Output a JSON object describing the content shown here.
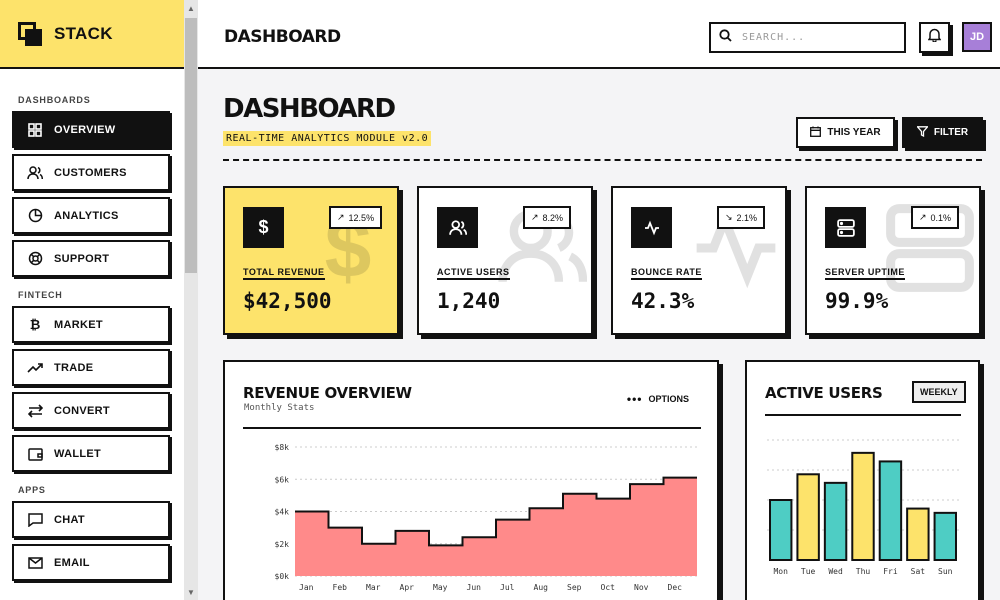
{
  "app": {
    "name": "STACK"
  },
  "sidebar": {
    "sections": [
      {
        "label": "DASHBOARDS",
        "items": [
          {
            "label": "OVERVIEW",
            "icon": "grid-icon",
            "active": true
          },
          {
            "label": "CUSTOMERS",
            "icon": "users-icon"
          },
          {
            "label": "ANALYTICS",
            "icon": "pie-chart-icon"
          },
          {
            "label": "SUPPORT",
            "icon": "lifebuoy-icon"
          }
        ]
      },
      {
        "label": "FINTECH",
        "items": [
          {
            "label": "MARKET",
            "icon": "bitcoin-icon"
          },
          {
            "label": "TRADE",
            "icon": "trending-up-icon"
          },
          {
            "label": "CONVERT",
            "icon": "swap-icon"
          },
          {
            "label": "WALLET",
            "icon": "wallet-icon"
          }
        ]
      },
      {
        "label": "APPS",
        "items": [
          {
            "label": "CHAT",
            "icon": "chat-icon"
          },
          {
            "label": "EMAIL",
            "icon": "mail-icon"
          }
        ]
      }
    ]
  },
  "header": {
    "title": "DASHBOARD",
    "search_placeholder": "SEARCH...",
    "avatar_initials": "JD"
  },
  "main": {
    "title": "DASHBOARD",
    "subtitle": "REAL-TIME ANALYTICS MODULE v2.0",
    "this_year_label": "THIS YEAR",
    "filter_label": "FILTER",
    "stats": [
      {
        "label": "TOTAL REVENUE",
        "value": "$42,500",
        "change": "12.5%",
        "direction": "up",
        "icon": "dollar-icon"
      },
      {
        "label": "ACTIVE USERS",
        "value": "1,240",
        "change": "8.2%",
        "direction": "up",
        "icon": "users-icon"
      },
      {
        "label": "BOUNCE RATE",
        "value": "42.3%",
        "change": "2.1%",
        "direction": "down",
        "icon": "activity-icon"
      },
      {
        "label": "SERVER UPTIME",
        "value": "99.9%",
        "change": "0.1%",
        "direction": "up",
        "icon": "server-icon"
      }
    ],
    "revenue_panel": {
      "title": "REVENUE OVERVIEW",
      "subtitle": "Monthly Stats",
      "options_label": "OPTIONS"
    },
    "users_panel": {
      "title": "ACTIVE USERS",
      "range_label": "WEEKLY"
    }
  },
  "colors": {
    "accent": "#fde36b",
    "chart_area": "#ff8a8a",
    "teal": "#4ecdc4",
    "avatar": "#a77fd8"
  },
  "chart_data": [
    {
      "type": "area",
      "title": "REVENUE OVERVIEW",
      "categories": [
        "Jan",
        "Feb",
        "Mar",
        "Apr",
        "May",
        "Jun",
        "Jul",
        "Aug",
        "Sep",
        "Oct",
        "Nov",
        "Dec"
      ],
      "values": [
        4000,
        3000,
        2000,
        2800,
        1900,
        2400,
        3500,
        4200,
        5100,
        4800,
        5700,
        6100
      ],
      "y_ticks": [
        "$0k",
        "$2k",
        "$4k",
        "$6k",
        "$8k"
      ],
      "ylim": [
        0,
        8000
      ],
      "grid": true,
      "step": true
    },
    {
      "type": "bar",
      "title": "ACTIVE USERS",
      "categories": [
        "Mon",
        "Tue",
        "Wed",
        "Thu",
        "Fri",
        "Sat",
        "Sun"
      ],
      "series": [
        {
          "values": [
            7,
            10,
            9,
            12.5,
            11.5,
            6,
            5.5
          ]
        }
      ],
      "bar_colors": [
        "#4ecdc4",
        "#fde36b",
        "#4ecdc4",
        "#fde36b",
        "#4ecdc4",
        "#fde36b",
        "#4ecdc4"
      ],
      "ylim": [
        0,
        14
      ],
      "grid": true
    }
  ]
}
